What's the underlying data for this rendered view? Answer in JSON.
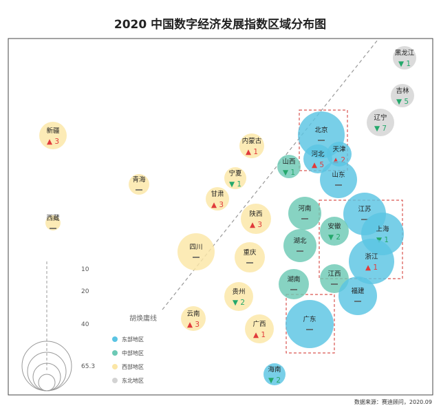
{
  "chart_data": {
    "type": "bubble",
    "title": "2020 中国数字经济发展指数区域分布图",
    "source": "数据来源：赛迪顾问，2020.09",
    "colors": {
      "东部地区": "#5ac4e3",
      "中部地区": "#6cc9b5",
      "西部地区": "#fbe6a6",
      "东北地区": "#d3d3d3",
      "up": "#e03b3b",
      "down": "#24a86b",
      "flat": "#555555"
    },
    "legend": [
      "东部地区",
      "中部地区",
      "西部地区",
      "东北地区"
    ],
    "size_legend": [
      "10",
      "20",
      "40",
      "65.3"
    ],
    "annotation": "胡焕庸线",
    "regions": [
      {
        "name": "黑龙江",
        "region": "东北地区",
        "rank_change": "down",
        "change": "1",
        "size": 8
      },
      {
        "name": "吉林",
        "region": "东北地区",
        "rank_change": "down",
        "change": "5",
        "size": 9
      },
      {
        "name": "辽宁",
        "region": "东北地区",
        "rank_change": "down",
        "change": "7",
        "size": 11
      },
      {
        "name": "北京",
        "region": "东部地区",
        "rank_change": "flat",
        "change": "",
        "size": 40
      },
      {
        "name": "河北",
        "region": "东部地区",
        "rank_change": "up",
        "change": "5",
        "size": 18
      },
      {
        "name": "天津",
        "region": "东部地区",
        "rank_change": "up",
        "change": "2",
        "size": 13
      },
      {
        "name": "山东",
        "region": "东部地区",
        "rank_change": "flat",
        "change": "",
        "size": 30
      },
      {
        "name": "山西",
        "region": "中部地区",
        "rank_change": "down",
        "change": "1",
        "size": 10
      },
      {
        "name": "新疆",
        "region": "西部地区",
        "rank_change": "up",
        "change": "3",
        "size": 10
      },
      {
        "name": "内蒙古",
        "region": "西部地区",
        "rank_change": "up",
        "change": "1",
        "size": 9
      },
      {
        "name": "宁夏",
        "region": "西部地区",
        "rank_change": "down",
        "change": "1",
        "size": 8
      },
      {
        "name": "青海",
        "region": "西部地区",
        "rank_change": "flat",
        "change": "",
        "size": 7
      },
      {
        "name": "甘肃",
        "region": "西部地区",
        "rank_change": "up",
        "change": "3",
        "size": 9
      },
      {
        "name": "陕西",
        "region": "西部地区",
        "rank_change": "up",
        "change": "3",
        "size": 14
      },
      {
        "name": "河南",
        "region": "中部地区",
        "rank_change": "flat",
        "change": "",
        "size": 16
      },
      {
        "name": "江苏",
        "region": "东部地区",
        "rank_change": "flat",
        "change": "",
        "size": 38
      },
      {
        "name": "安徽",
        "region": "中部地区",
        "rank_change": "down",
        "change": "2",
        "size": 14
      },
      {
        "name": "上海",
        "region": "东部地区",
        "rank_change": "down",
        "change": "1",
        "size": 28
      },
      {
        "name": "西藏",
        "region": "西部地区",
        "rank_change": "flat",
        "change": "",
        "size": 3
      },
      {
        "name": "四川",
        "region": "西部地区",
        "rank_change": "flat",
        "change": "",
        "size": 24
      },
      {
        "name": "湖北",
        "region": "中部地区",
        "rank_change": "flat",
        "change": "",
        "size": 16
      },
      {
        "name": "重庆",
        "region": "西部地区",
        "rank_change": "flat",
        "change": "",
        "size": 13
      },
      {
        "name": "浙江",
        "region": "东部地区",
        "rank_change": "up",
        "change": "1",
        "size": 38
      },
      {
        "name": "湖南",
        "region": "中部地区",
        "rank_change": "flat",
        "change": "",
        "size": 14
      },
      {
        "name": "江西",
        "region": "中部地区",
        "rank_change": "flat",
        "change": "",
        "size": 12
      },
      {
        "name": "福建",
        "region": "东部地区",
        "rank_change": "flat",
        "change": "",
        "size": 22
      },
      {
        "name": "贵州",
        "region": "西部地区",
        "rank_change": "down",
        "change": "2",
        "size": 12
      },
      {
        "name": "云南",
        "region": "西部地区",
        "rank_change": "up",
        "change": "3",
        "size": 10
      },
      {
        "name": "广西",
        "region": "西部地区",
        "rank_change": "up",
        "change": "1",
        "size": 12
      },
      {
        "name": "广东",
        "region": "东部地区",
        "rank_change": "flat",
        "change": "",
        "size": 65.3
      },
      {
        "name": "海南",
        "region": "东部地区",
        "rank_change": "down",
        "change": "2",
        "size": 6
      }
    ]
  }
}
